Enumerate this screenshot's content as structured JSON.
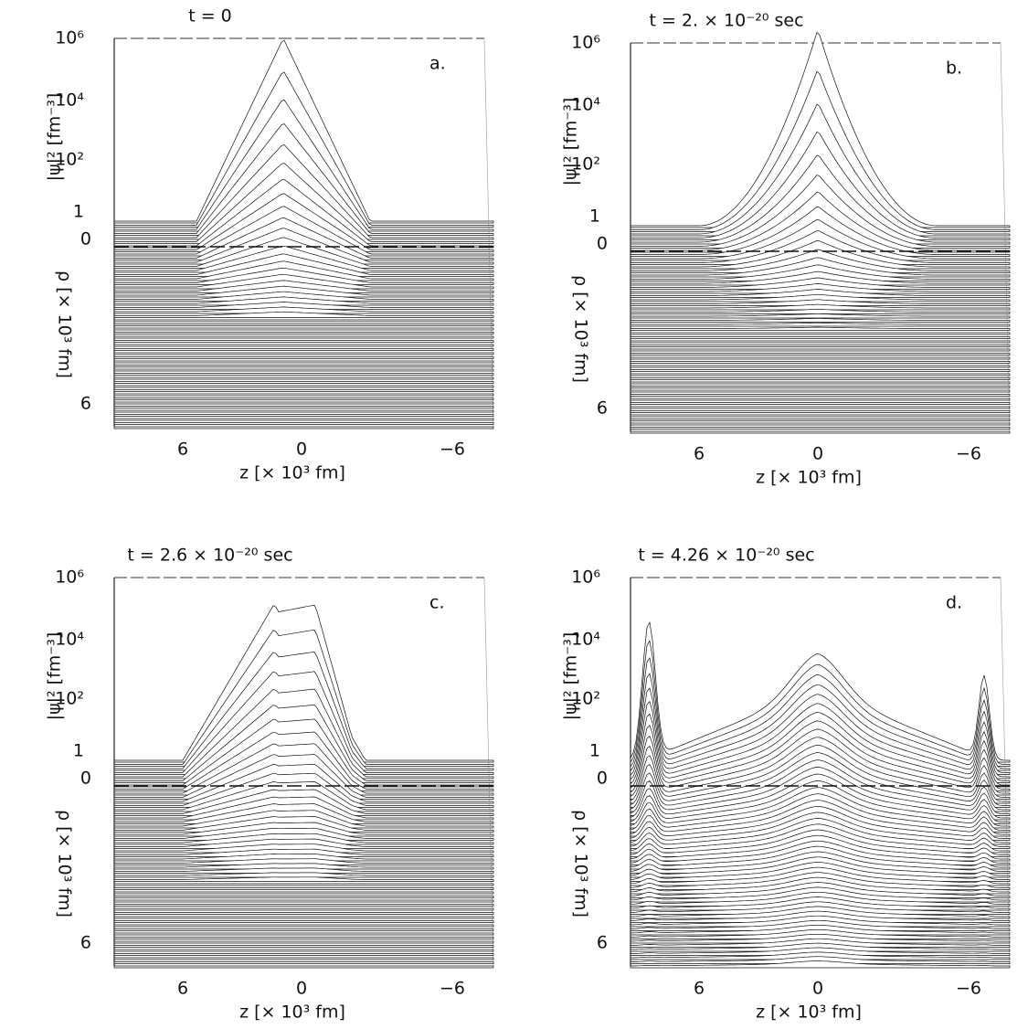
{
  "panels": [
    {
      "title": "t = 0",
      "letter": "a.",
      "y_ticks": [
        "10⁶",
        "10⁴",
        "10²",
        "1"
      ],
      "rho_ticks": [
        "0",
        "6"
      ],
      "x_ticks": [
        "6",
        "0",
        "−6"
      ],
      "y_label": "|ψ|² [fm⁻³]",
      "rho_label": "ρ [× 10³ fm]",
      "x_label": "z [× 10³ fm]"
    },
    {
      "title": "t = 2. × 10⁻²⁰ sec",
      "letter": "b.",
      "y_ticks": [
        "10⁶",
        "10⁴",
        "10²",
        "1"
      ],
      "rho_ticks": [
        "0",
        "6"
      ],
      "x_ticks": [
        "6",
        "0",
        "−6"
      ],
      "y_label": "|ψ|² [fm⁻³]",
      "rho_label": "ρ [× 10³ fm]",
      "x_label": "z [× 10³ fm]"
    },
    {
      "title": "t = 2.6 × 10⁻²⁰ sec",
      "letter": "c.",
      "y_ticks": [
        "10⁶",
        "10⁴",
        "10²",
        "1"
      ],
      "rho_ticks": [
        "0",
        "6"
      ],
      "x_ticks": [
        "6",
        "0",
        "−6"
      ],
      "y_label": "|ψ|² [fm⁻³]",
      "rho_label": "ρ [× 10³ fm]",
      "x_label": "z [× 10³ fm]"
    },
    {
      "title": "t = 4.26 × 10⁻²⁰ sec",
      "letter": "d.",
      "y_ticks": [
        "10⁶",
        "10⁴",
        "10²",
        "1"
      ],
      "rho_ticks": [
        "0",
        "6"
      ],
      "x_ticks": [
        "6",
        "0",
        "−6"
      ],
      "y_label": "|ψ|² [fm⁻³]",
      "rho_label": "ρ [× 10³ fm]",
      "x_label": "z [× 10³ fm]"
    }
  ]
}
